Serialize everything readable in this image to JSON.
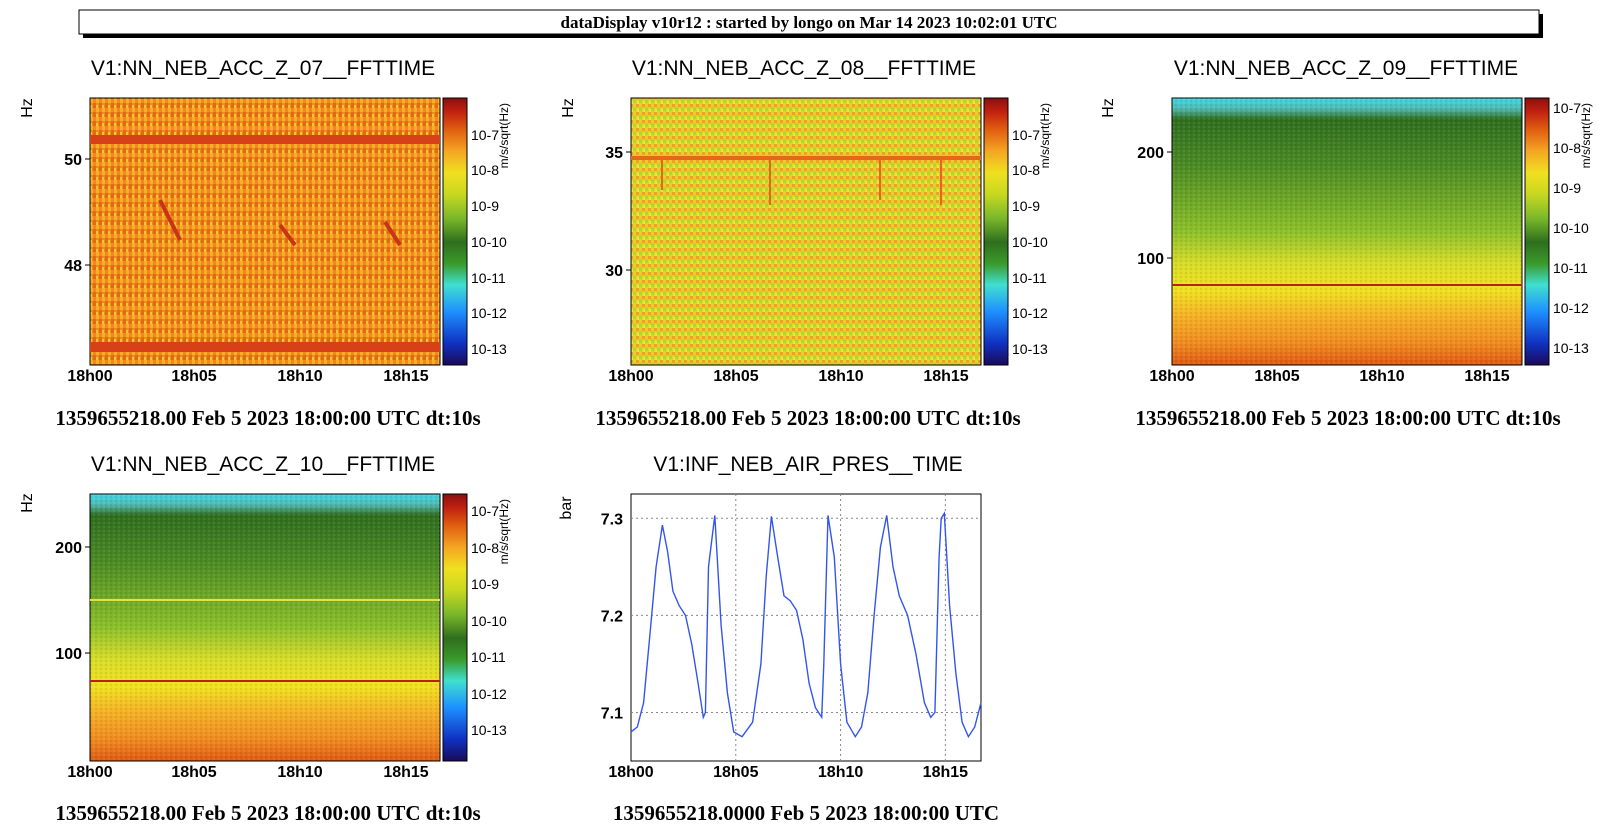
{
  "header": {
    "title": "dataDisplay v10r12 : started by longo on Mar 14 2023 10:02:01 UTC"
  },
  "colors": {
    "spectro_scale": [
      "#1a0a5a",
      "#1030c0",
      "#1e90ff",
      "#40e0d0",
      "#3a9a2a",
      "#2f6e1e",
      "#7ab82a",
      "#c8d820",
      "#f0e020",
      "#f5a623",
      "#e06010",
      "#c02010",
      "#8a1010"
    ],
    "line": "#3355ee"
  },
  "chart_data": [
    {
      "type": "heatmap",
      "title": "V1:NN_NEB_ACC_Z_07__FFTTIME",
      "ylabel": "Hz",
      "xticks": [
        "18h00",
        "18h05",
        "18h10",
        "18h15"
      ],
      "yticks": [
        "48",
        "50"
      ],
      "ylim": [
        46.1,
        51.1
      ],
      "colorbar": {
        "unit": "m/s/sqrt(Hz)",
        "labels": [
          "10-7",
          "10-8",
          "10-9",
          "10-10",
          "10-11",
          "10-12",
          "10-13"
        ]
      },
      "footer": "1359655218.00 Feb 5 2023 18:00:00 UTC dt:10s"
    },
    {
      "type": "heatmap",
      "title": "V1:NN_NEB_ACC_Z_08__FFTTIME",
      "ylabel": "Hz",
      "xticks": [
        "18h00",
        "18h05",
        "18h10",
        "18h15"
      ],
      "yticks": [
        "30",
        "35"
      ],
      "ylim": [
        25.9,
        37.3
      ],
      "colorbar": {
        "unit": "m/s/sqrt(Hz)",
        "labels": [
          "10-7",
          "10-8",
          "10-9",
          "10-10",
          "10-11",
          "10-12",
          "10-13"
        ]
      },
      "footer": "1359655218.00 Feb 5 2023 18:00:00 UTC dt:10s"
    },
    {
      "type": "heatmap",
      "title": "V1:NN_NEB_ACC_Z_09__FFTTIME",
      "ylabel": "Hz",
      "xticks": [
        "18h00",
        "18h05",
        "18h10",
        "18h15"
      ],
      "yticks": [
        "100",
        "200"
      ],
      "ylim": [
        0,
        250
      ],
      "colorbar": {
        "unit": "m/s/sqrt(Hz)",
        "labels": [
          "10-7",
          "10-8",
          "10-9",
          "10-10",
          "10-11",
          "10-12",
          "10-13"
        ]
      },
      "footer": "1359655218.00 Feb 5 2023 18:00:00 UTC dt:10s"
    },
    {
      "type": "heatmap",
      "title": "V1:NN_NEB_ACC_Z_10__FFTTIME",
      "ylabel": "Hz",
      "xticks": [
        "18h00",
        "18h05",
        "18h10",
        "18h15"
      ],
      "yticks": [
        "100",
        "200"
      ],
      "ylim": [
        0,
        250
      ],
      "colorbar": {
        "unit": "m/s/sqrt(Hz)",
        "labels": [
          "10-7",
          "10-8",
          "10-9",
          "10-10",
          "10-11",
          "10-12",
          "10-13"
        ]
      },
      "footer": "1359655218.00 Feb 5 2023 18:00:00 UTC dt:10s"
    },
    {
      "type": "line",
      "title": "V1:INF_NEB_AIR_PRES__TIME",
      "ylabel": "bar",
      "xticks": [
        "18h00",
        "18h05",
        "18h10",
        "18h15"
      ],
      "yticks": [
        "7.1",
        "7.2",
        "7.3"
      ],
      "xlim_minutes": [
        0,
        16.7
      ],
      "ylim": [
        7.05,
        7.325
      ],
      "grid": true,
      "x": [
        0,
        0.3,
        0.6,
        0.9,
        1.2,
        1.5,
        1.75,
        2.0,
        2.3,
        2.6,
        2.9,
        3.2,
        3.45,
        3.55,
        3.7,
        4.0,
        4.3,
        4.6,
        4.9,
        5.3,
        5.8,
        6.2,
        6.45,
        6.7,
        7.0,
        7.3,
        7.6,
        7.9,
        8.2,
        8.5,
        8.8,
        9.1,
        9.2,
        9.4,
        9.7,
        10.0,
        10.3,
        10.7,
        11.0,
        11.3,
        11.6,
        11.9,
        12.2,
        12.5,
        12.8,
        13.2,
        13.6,
        14.0,
        14.3,
        14.5,
        14.7,
        14.8,
        14.95,
        15.2,
        15.5,
        15.8,
        16.1,
        16.4,
        16.7
      ],
      "y": [
        7.08,
        7.085,
        7.11,
        7.18,
        7.25,
        7.293,
        7.265,
        7.225,
        7.21,
        7.2,
        7.17,
        7.13,
        7.095,
        7.1,
        7.25,
        7.303,
        7.19,
        7.12,
        7.08,
        7.075,
        7.09,
        7.15,
        7.24,
        7.302,
        7.26,
        7.22,
        7.215,
        7.205,
        7.175,
        7.13,
        7.105,
        7.095,
        7.15,
        7.303,
        7.26,
        7.15,
        7.09,
        7.075,
        7.085,
        7.12,
        7.2,
        7.27,
        7.303,
        7.25,
        7.22,
        7.2,
        7.16,
        7.11,
        7.095,
        7.1,
        7.26,
        7.3,
        7.305,
        7.21,
        7.14,
        7.09,
        7.075,
        7.085,
        7.11
      ],
      "footer": "1359655218.0000 Feb 5 2023 18:00:00 UTC"
    }
  ]
}
